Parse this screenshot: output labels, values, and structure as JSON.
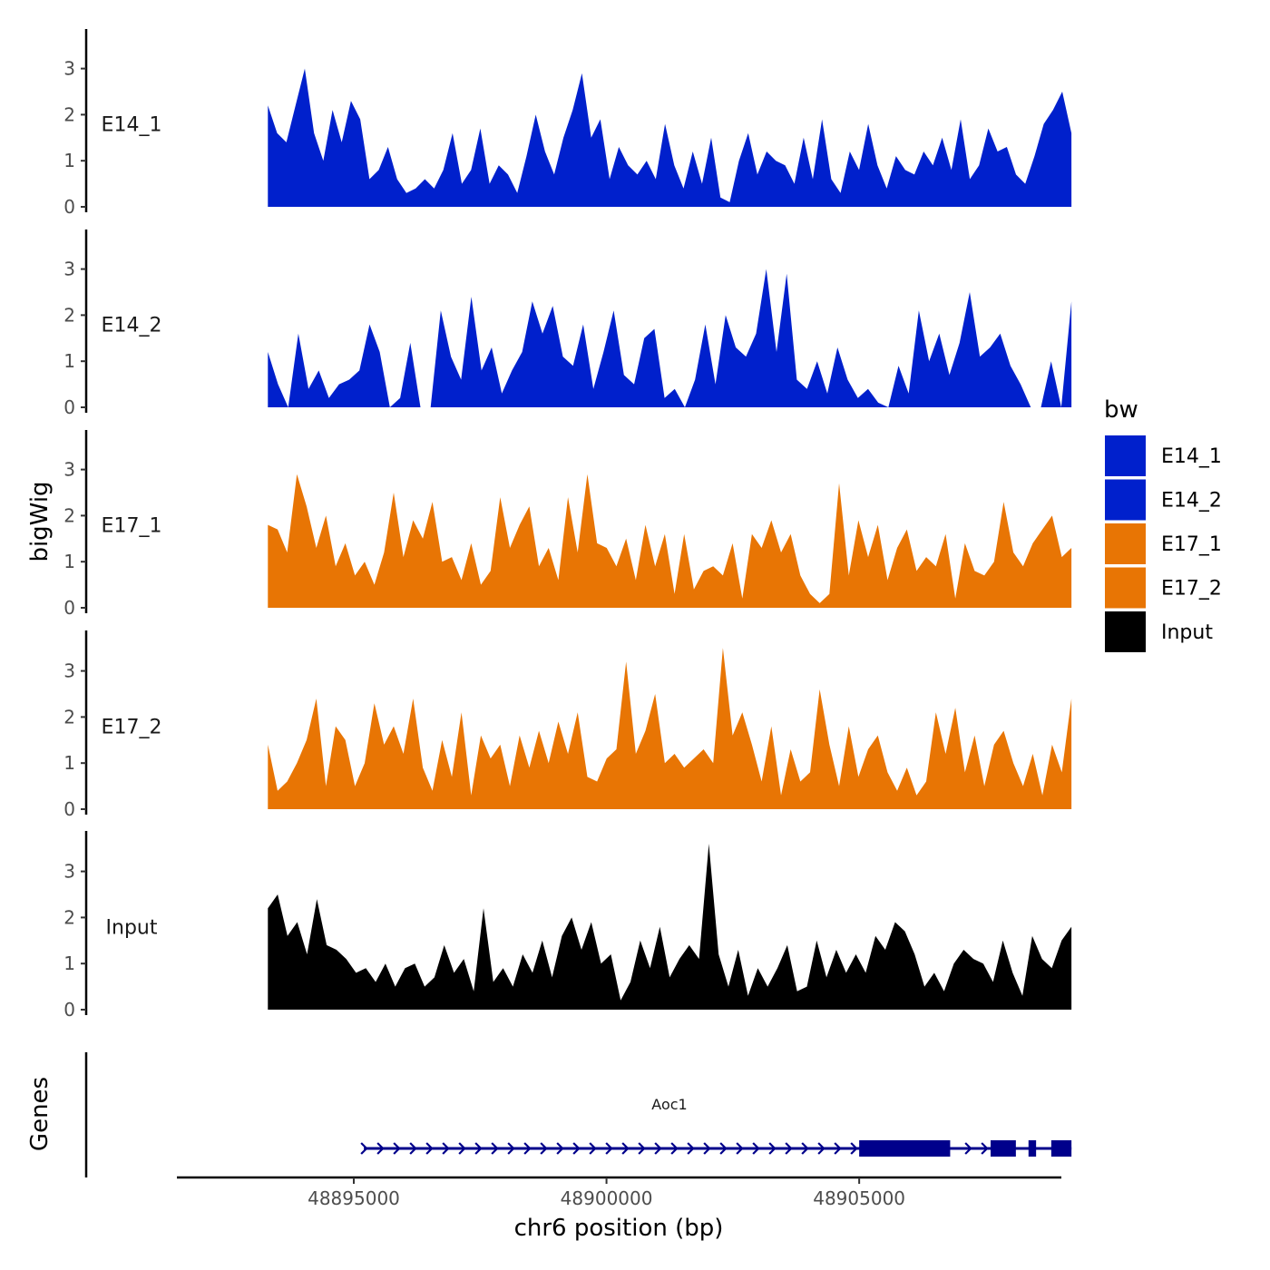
{
  "chart_data": {
    "type": "area",
    "title": "",
    "xlabel": "chr6 position (bp)",
    "ylabel": "bigWig",
    "xlim": [
      48891500,
      48909000
    ],
    "ylim": [
      0,
      3.9
    ],
    "x_ticks": [
      48895000,
      48900000,
      48905000
    ],
    "x_tick_labels": [
      "48895000",
      "48900000",
      "48905000"
    ],
    "y_ticks": [
      0,
      1,
      2,
      3
    ],
    "y_tick_labels": [
      "0",
      "1",
      "2",
      "3"
    ],
    "x_range": [
      48893300,
      48909200
    ],
    "legend": {
      "title": "bw",
      "position": "right",
      "entries": [
        {
          "name": "E14_1",
          "color": "#0020cc"
        },
        {
          "name": "E14_2",
          "color": "#0020cc"
        },
        {
          "name": "E17_1",
          "color": "#e87504"
        },
        {
          "name": "E17_2",
          "color": "#e87504"
        },
        {
          "name": "Input",
          "color": "#000000"
        }
      ]
    },
    "series": [
      {
        "name": "E14_1",
        "color": "#0020cc",
        "values": [
          2.2,
          1.6,
          1.4,
          2.2,
          3.0,
          1.6,
          1.0,
          2.1,
          1.4,
          2.3,
          1.9,
          0.6,
          0.8,
          1.3,
          0.6,
          0.3,
          0.4,
          0.6,
          0.4,
          0.8,
          1.6,
          0.5,
          0.8,
          1.7,
          0.5,
          0.9,
          0.7,
          0.3,
          1.1,
          2.0,
          1.2,
          0.7,
          1.5,
          2.1,
          2.9,
          1.5,
          1.9,
          0.6,
          1.3,
          0.9,
          0.7,
          1.0,
          0.6,
          1.8,
          0.9,
          0.4,
          1.2,
          0.5,
          1.5,
          0.2,
          0.1,
          1.0,
          1.6,
          0.7,
          1.2,
          1.0,
          0.9,
          0.5,
          1.5,
          0.6,
          1.9,
          0.6,
          0.3,
          1.2,
          0.8,
          1.8,
          0.9,
          0.4,
          1.1,
          0.8,
          0.7,
          1.2,
          0.9,
          1.5,
          0.8,
          1.9,
          0.6,
          0.9,
          1.7,
          1.2,
          1.3,
          0.7,
          0.5,
          1.1,
          1.8,
          2.1,
          2.5,
          1.6
        ]
      },
      {
        "name": "E14_2",
        "color": "#0020cc",
        "values": [
          1.2,
          0.5,
          0.0,
          1.6,
          0.4,
          0.8,
          0.2,
          0.5,
          0.6,
          0.8,
          1.8,
          1.2,
          0.0,
          0.2,
          1.4,
          0.0,
          0.0,
          2.1,
          1.1,
          0.6,
          2.4,
          0.8,
          1.3,
          0.3,
          0.8,
          1.2,
          2.3,
          1.6,
          2.2,
          1.1,
          0.9,
          1.8,
          0.4,
          1.2,
          2.1,
          0.7,
          0.5,
          1.5,
          1.7,
          0.2,
          0.4,
          0.0,
          0.6,
          1.8,
          0.5,
          2.0,
          1.3,
          1.1,
          1.6,
          3.0,
          1.2,
          2.9,
          0.6,
          0.4,
          1.0,
          0.3,
          1.3,
          0.6,
          0.2,
          0.4,
          0.1,
          0.0,
          0.9,
          0.3,
          2.1,
          1.0,
          1.6,
          0.7,
          1.4,
          2.5,
          1.1,
          1.3,
          1.6,
          0.9,
          0.5,
          0.0,
          0.0,
          1.0,
          0.0,
          2.3
        ]
      },
      {
        "name": "E17_1",
        "color": "#e87504",
        "values": [
          1.8,
          1.7,
          1.2,
          2.9,
          2.2,
          1.3,
          2.0,
          0.9,
          1.4,
          0.7,
          1.0,
          0.5,
          1.2,
          2.5,
          1.1,
          1.9,
          1.5,
          2.3,
          1.0,
          1.1,
          0.6,
          1.4,
          0.5,
          0.8,
          2.4,
          1.3,
          1.8,
          2.2,
          0.9,
          1.3,
          0.6,
          2.4,
          1.2,
          2.9,
          1.4,
          1.3,
          0.9,
          1.5,
          0.6,
          1.8,
          0.9,
          1.6,
          0.3,
          1.6,
          0.4,
          0.8,
          0.9,
          0.7,
          1.4,
          0.2,
          1.6,
          1.3,
          1.9,
          1.2,
          1.6,
          0.7,
          0.3,
          0.1,
          0.3,
          2.7,
          0.7,
          1.9,
          1.1,
          1.8,
          0.6,
          1.3,
          1.7,
          0.8,
          1.1,
          0.9,
          1.6,
          0.2,
          1.4,
          0.8,
          0.7,
          1.0,
          2.3,
          1.2,
          0.9,
          1.4,
          1.7,
          2.0,
          1.1,
          1.3
        ]
      },
      {
        "name": "E17_2",
        "color": "#e87504",
        "values": [
          1.4,
          0.4,
          0.6,
          1.0,
          1.5,
          2.4,
          0.5,
          1.8,
          1.5,
          0.5,
          1.0,
          2.3,
          1.4,
          1.8,
          1.2,
          2.4,
          0.9,
          0.4,
          1.5,
          0.7,
          2.1,
          0.3,
          1.6,
          1.1,
          1.4,
          0.5,
          1.6,
          0.9,
          1.7,
          1.0,
          1.9,
          1.2,
          2.1,
          0.7,
          0.6,
          1.1,
          1.3,
          3.2,
          1.2,
          1.7,
          2.5,
          1.0,
          1.2,
          0.9,
          1.1,
          1.3,
          1.0,
          3.5,
          1.6,
          2.1,
          1.4,
          0.6,
          1.8,
          0.3,
          1.3,
          0.6,
          0.8,
          2.6,
          1.4,
          0.5,
          1.8,
          0.7,
          1.3,
          1.6,
          0.8,
          0.4,
          0.9,
          0.3,
          0.6,
          2.1,
          1.2,
          2.2,
          0.8,
          1.6,
          0.5,
          1.4,
          1.7,
          1.0,
          0.5,
          1.2,
          0.3,
          1.4,
          0.8,
          2.4
        ]
      },
      {
        "name": "Input",
        "color": "#000000",
        "values": [
          2.2,
          2.5,
          1.6,
          1.9,
          1.2,
          2.4,
          1.4,
          1.3,
          1.1,
          0.8,
          0.9,
          0.6,
          1.0,
          0.5,
          0.9,
          1.0,
          0.5,
          0.7,
          1.4,
          0.8,
          1.1,
          0.4,
          2.2,
          0.6,
          0.9,
          0.5,
          1.2,
          0.8,
          1.5,
          0.7,
          1.6,
          2.0,
          1.3,
          1.9,
          1.0,
          1.2,
          0.2,
          0.6,
          1.5,
          0.9,
          1.8,
          0.7,
          1.1,
          1.4,
          1.1,
          3.6,
          1.2,
          0.5,
          1.3,
          0.3,
          0.9,
          0.5,
          0.9,
          1.4,
          0.4,
          0.5,
          1.5,
          0.7,
          1.3,
          0.8,
          1.2,
          0.8,
          1.6,
          1.3,
          1.9,
          1.7,
          1.2,
          0.5,
          0.8,
          0.4,
          1.0,
          1.3,
          1.1,
          1.0,
          0.6,
          1.5,
          0.8,
          0.3,
          1.6,
          1.1,
          0.9,
          1.5,
          1.8
        ]
      }
    ],
    "gene_track": {
      "label": "Genes",
      "gene_name": "Aoc1",
      "strand": "+",
      "start": 48895200,
      "end": 48909200,
      "color": "#00008b",
      "exons": [
        [
          48905000,
          48906800
        ],
        [
          48907600,
          48908100
        ],
        [
          48908350,
          48908500
        ],
        [
          48908800,
          48909200
        ]
      ]
    }
  }
}
